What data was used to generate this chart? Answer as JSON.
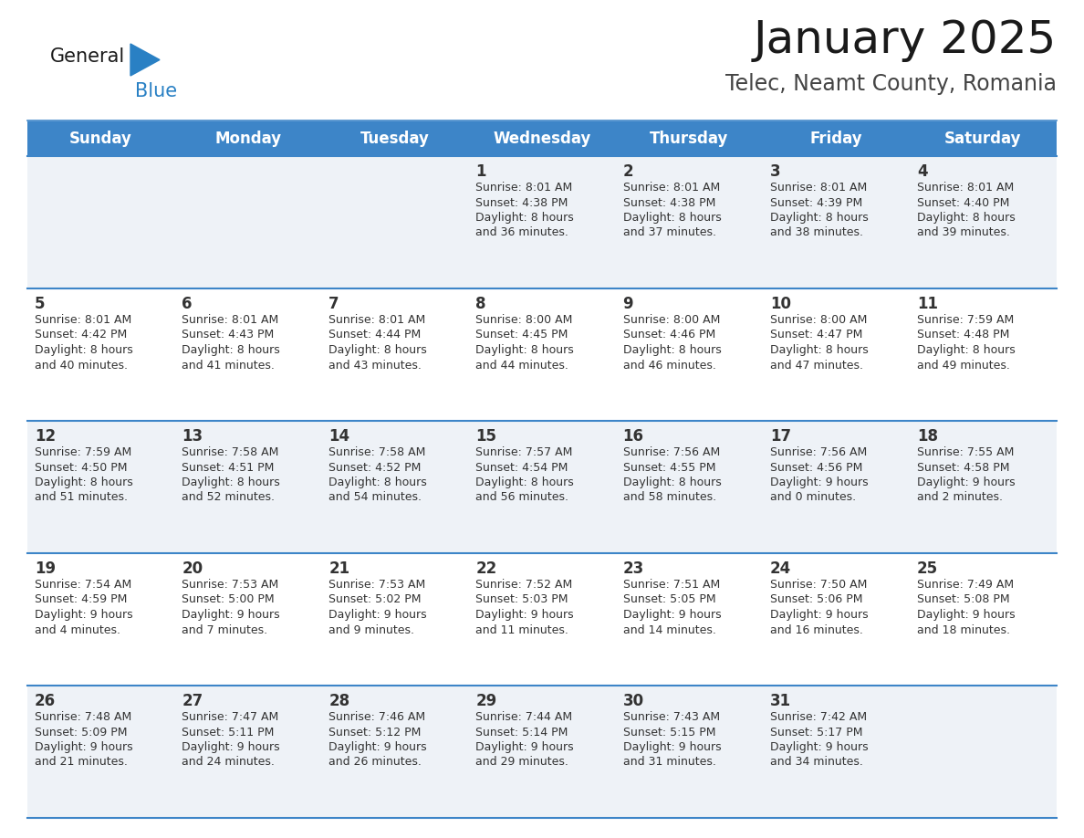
{
  "title": "January 2025",
  "subtitle": "Telec, Neamt County, Romania",
  "header_bg": "#3d85c8",
  "header_text": "#ffffff",
  "row_bg_odd": "#eef2f7",
  "row_bg_even": "#ffffff",
  "day_number_color": "#333333",
  "text_color": "#333333",
  "separator_color": "#3d85c8",
  "days_of_week": [
    "Sunday",
    "Monday",
    "Tuesday",
    "Wednesday",
    "Thursday",
    "Friday",
    "Saturday"
  ],
  "calendar_data": [
    [
      null,
      null,
      null,
      {
        "day": "1",
        "sunrise": "8:01 AM",
        "sunset": "4:38 PM",
        "daylight1": "8 hours",
        "daylight2": "and 36 minutes."
      },
      {
        "day": "2",
        "sunrise": "8:01 AM",
        "sunset": "4:38 PM",
        "daylight1": "8 hours",
        "daylight2": "and 37 minutes."
      },
      {
        "day": "3",
        "sunrise": "8:01 AM",
        "sunset": "4:39 PM",
        "daylight1": "8 hours",
        "daylight2": "and 38 minutes."
      },
      {
        "day": "4",
        "sunrise": "8:01 AM",
        "sunset": "4:40 PM",
        "daylight1": "8 hours",
        "daylight2": "and 39 minutes."
      }
    ],
    [
      {
        "day": "5",
        "sunrise": "8:01 AM",
        "sunset": "4:42 PM",
        "daylight1": "8 hours",
        "daylight2": "and 40 minutes."
      },
      {
        "day": "6",
        "sunrise": "8:01 AM",
        "sunset": "4:43 PM",
        "daylight1": "8 hours",
        "daylight2": "and 41 minutes."
      },
      {
        "day": "7",
        "sunrise": "8:01 AM",
        "sunset": "4:44 PM",
        "daylight1": "8 hours",
        "daylight2": "and 43 minutes."
      },
      {
        "day": "8",
        "sunrise": "8:00 AM",
        "sunset": "4:45 PM",
        "daylight1": "8 hours",
        "daylight2": "and 44 minutes."
      },
      {
        "day": "9",
        "sunrise": "8:00 AM",
        "sunset": "4:46 PM",
        "daylight1": "8 hours",
        "daylight2": "and 46 minutes."
      },
      {
        "day": "10",
        "sunrise": "8:00 AM",
        "sunset": "4:47 PM",
        "daylight1": "8 hours",
        "daylight2": "and 47 minutes."
      },
      {
        "day": "11",
        "sunrise": "7:59 AM",
        "sunset": "4:48 PM",
        "daylight1": "8 hours",
        "daylight2": "and 49 minutes."
      }
    ],
    [
      {
        "day": "12",
        "sunrise": "7:59 AM",
        "sunset": "4:50 PM",
        "daylight1": "8 hours",
        "daylight2": "and 51 minutes."
      },
      {
        "day": "13",
        "sunrise": "7:58 AM",
        "sunset": "4:51 PM",
        "daylight1": "8 hours",
        "daylight2": "and 52 minutes."
      },
      {
        "day": "14",
        "sunrise": "7:58 AM",
        "sunset": "4:52 PM",
        "daylight1": "8 hours",
        "daylight2": "and 54 minutes."
      },
      {
        "day": "15",
        "sunrise": "7:57 AM",
        "sunset": "4:54 PM",
        "daylight1": "8 hours",
        "daylight2": "and 56 minutes."
      },
      {
        "day": "16",
        "sunrise": "7:56 AM",
        "sunset": "4:55 PM",
        "daylight1": "8 hours",
        "daylight2": "and 58 minutes."
      },
      {
        "day": "17",
        "sunrise": "7:56 AM",
        "sunset": "4:56 PM",
        "daylight1": "9 hours",
        "daylight2": "and 0 minutes."
      },
      {
        "day": "18",
        "sunrise": "7:55 AM",
        "sunset": "4:58 PM",
        "daylight1": "9 hours",
        "daylight2": "and 2 minutes."
      }
    ],
    [
      {
        "day": "19",
        "sunrise": "7:54 AM",
        "sunset": "4:59 PM",
        "daylight1": "9 hours",
        "daylight2": "and 4 minutes."
      },
      {
        "day": "20",
        "sunrise": "7:53 AM",
        "sunset": "5:00 PM",
        "daylight1": "9 hours",
        "daylight2": "and 7 minutes."
      },
      {
        "day": "21",
        "sunrise": "7:53 AM",
        "sunset": "5:02 PM",
        "daylight1": "9 hours",
        "daylight2": "and 9 minutes."
      },
      {
        "day": "22",
        "sunrise": "7:52 AM",
        "sunset": "5:03 PM",
        "daylight1": "9 hours",
        "daylight2": "and 11 minutes."
      },
      {
        "day": "23",
        "sunrise": "7:51 AM",
        "sunset": "5:05 PM",
        "daylight1": "9 hours",
        "daylight2": "and 14 minutes."
      },
      {
        "day": "24",
        "sunrise": "7:50 AM",
        "sunset": "5:06 PM",
        "daylight1": "9 hours",
        "daylight2": "and 16 minutes."
      },
      {
        "day": "25",
        "sunrise": "7:49 AM",
        "sunset": "5:08 PM",
        "daylight1": "9 hours",
        "daylight2": "and 18 minutes."
      }
    ],
    [
      {
        "day": "26",
        "sunrise": "7:48 AM",
        "sunset": "5:09 PM",
        "daylight1": "9 hours",
        "daylight2": "and 21 minutes."
      },
      {
        "day": "27",
        "sunrise": "7:47 AM",
        "sunset": "5:11 PM",
        "daylight1": "9 hours",
        "daylight2": "and 24 minutes."
      },
      {
        "day": "28",
        "sunrise": "7:46 AM",
        "sunset": "5:12 PM",
        "daylight1": "9 hours",
        "daylight2": "and 26 minutes."
      },
      {
        "day": "29",
        "sunrise": "7:44 AM",
        "sunset": "5:14 PM",
        "daylight1": "9 hours",
        "daylight2": "and 29 minutes."
      },
      {
        "day": "30",
        "sunrise": "7:43 AM",
        "sunset": "5:15 PM",
        "daylight1": "9 hours",
        "daylight2": "and 31 minutes."
      },
      {
        "day": "31",
        "sunrise": "7:42 AM",
        "sunset": "5:17 PM",
        "daylight1": "9 hours",
        "daylight2": "and 34 minutes."
      },
      null
    ]
  ],
  "logo_general_color": "#1a1a1a",
  "logo_blue_color": "#2980c4",
  "logo_triangle_color": "#2980c4",
  "title_fontsize": 36,
  "subtitle_fontsize": 17,
  "header_fontsize": 12,
  "day_num_fontsize": 12,
  "cell_text_fontsize": 9
}
